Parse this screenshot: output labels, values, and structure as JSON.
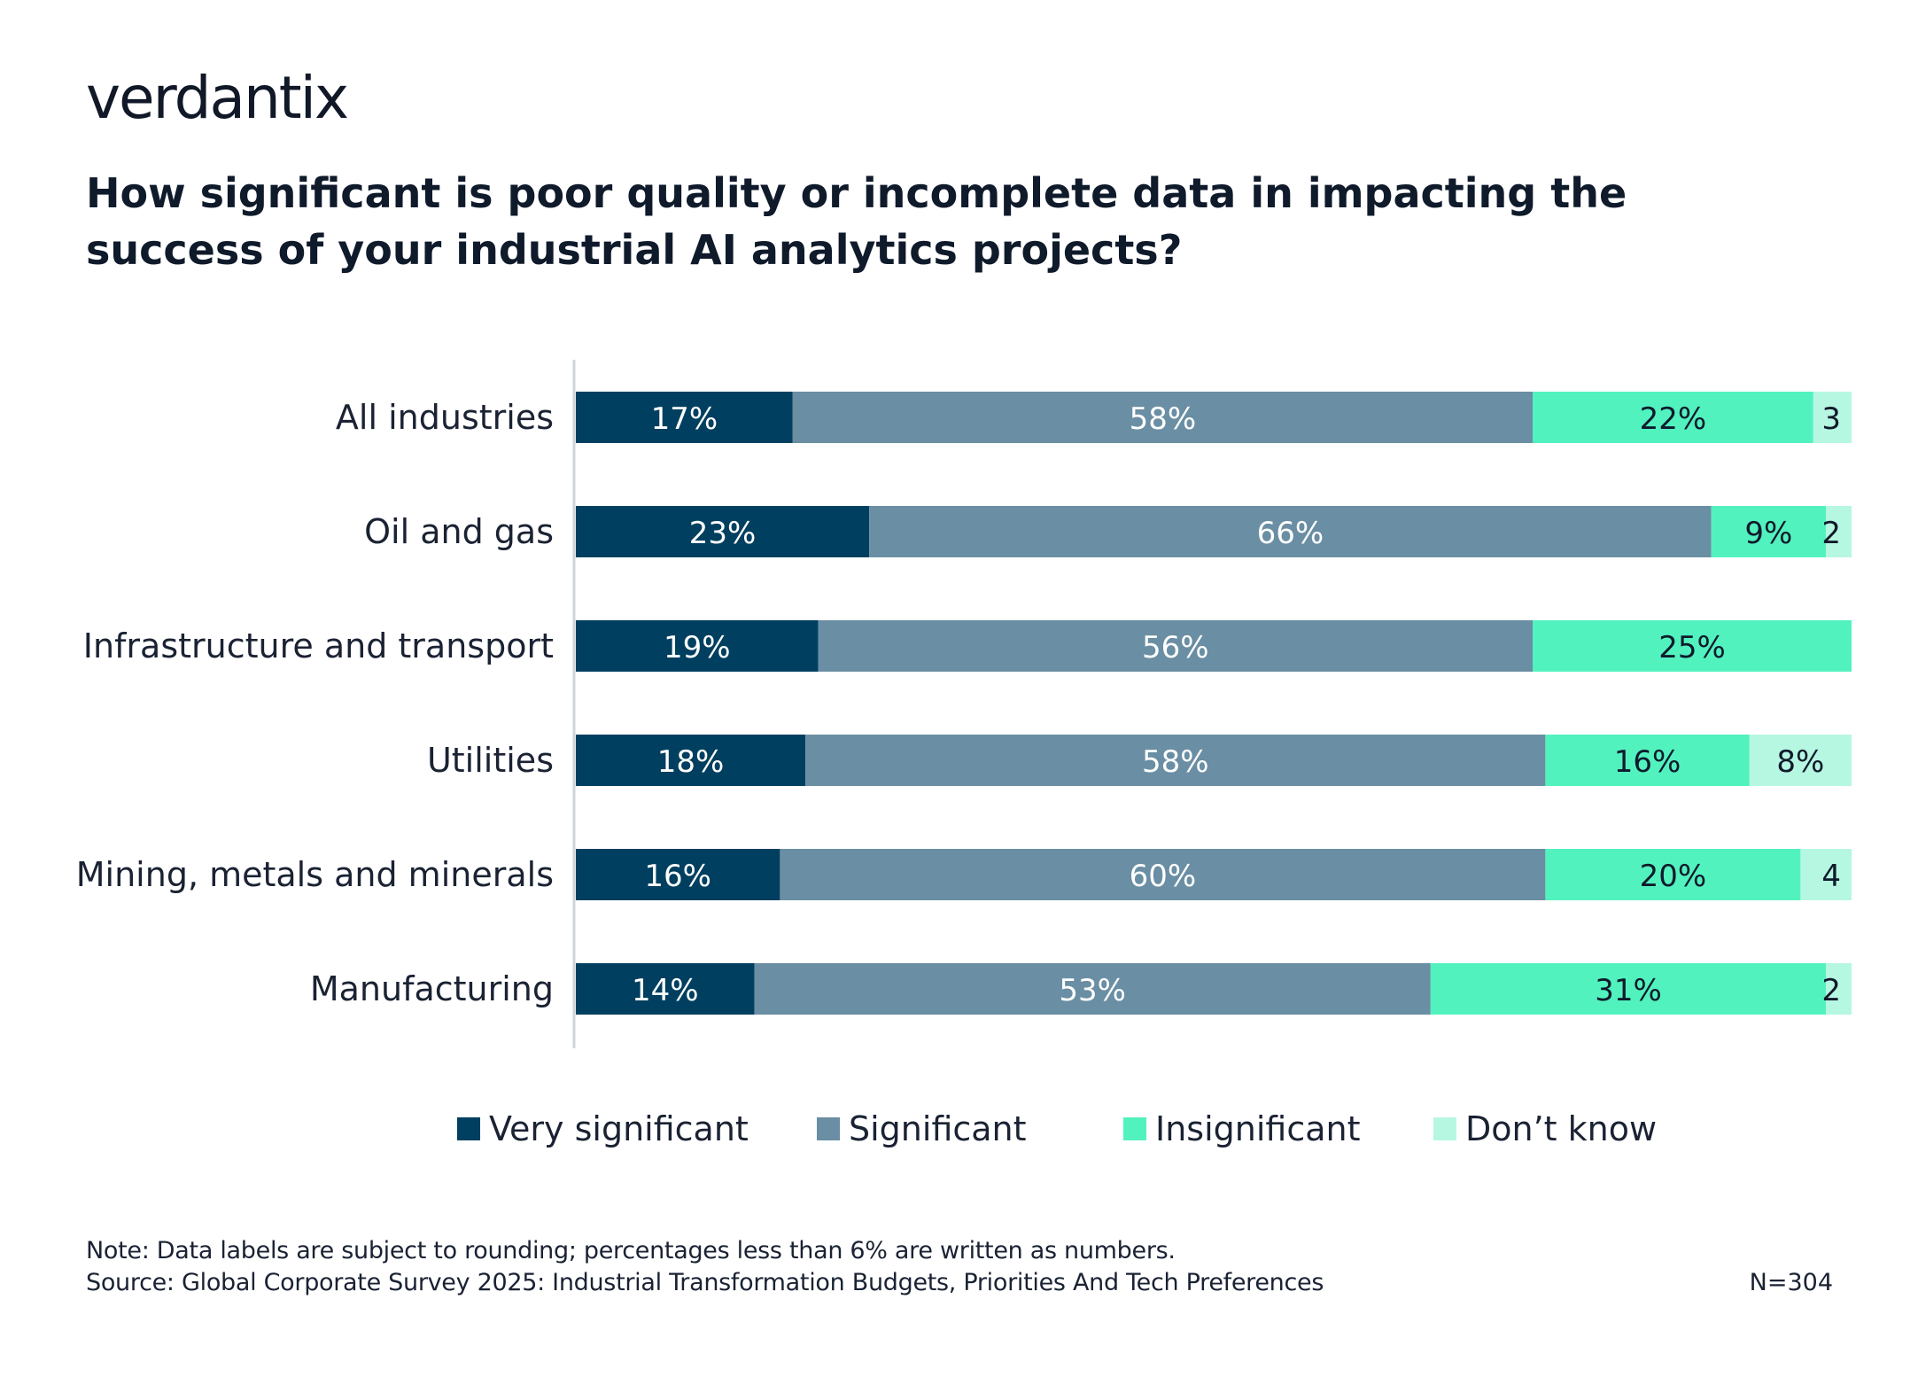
{
  "brand": {
    "logo_text": "verdantix"
  },
  "chart_data": {
    "type": "bar",
    "orientation": "horizontal",
    "stacked": true,
    "title": "How significant is poor quality or incomplete data in impacting the success of your industrial AI analytics projects?",
    "categories": [
      "All industries",
      "Oil and gas",
      "Infrastructure and transport",
      "Utilities",
      "Mining, metals and minerals",
      "Manufacturing"
    ],
    "series": [
      {
        "name": "Very significant",
        "color": "#003f5f",
        "values": [
          17,
          23,
          19,
          18,
          16,
          14
        ],
        "labels": [
          "17%",
          "23%",
          "19%",
          "18%",
          "16%",
          "14%"
        ]
      },
      {
        "name": "Significant",
        "color": "#6a8ea3",
        "values": [
          58,
          66,
          56,
          58,
          60,
          53
        ],
        "labels": [
          "58%",
          "66%",
          "56%",
          "58%",
          "60%",
          "53%"
        ]
      },
      {
        "name": "Insignificant",
        "color": "#52f2bf",
        "values": [
          22,
          9,
          25,
          16,
          20,
          31
        ],
        "labels": [
          "22%",
          "9%",
          "25%",
          "16%",
          "20%",
          "31%"
        ]
      },
      {
        "name": "Don’t know",
        "color": "#b6f7e2",
        "values": [
          3,
          2,
          0,
          8,
          4,
          2
        ],
        "labels": [
          "3",
          "2",
          "",
          "8%",
          "4",
          "2"
        ]
      }
    ],
    "xlim": [
      0,
      100
    ],
    "grid": false,
    "legend_position": "bottom"
  },
  "footer": {
    "note": "Note: Data labels are subject to rounding; percentages less than 6% are written as numbers.",
    "source": "Source: Global Corporate Survey 2025: Industrial Transformation Budgets, Priorities And Tech Preferences",
    "sample": "N=304"
  }
}
